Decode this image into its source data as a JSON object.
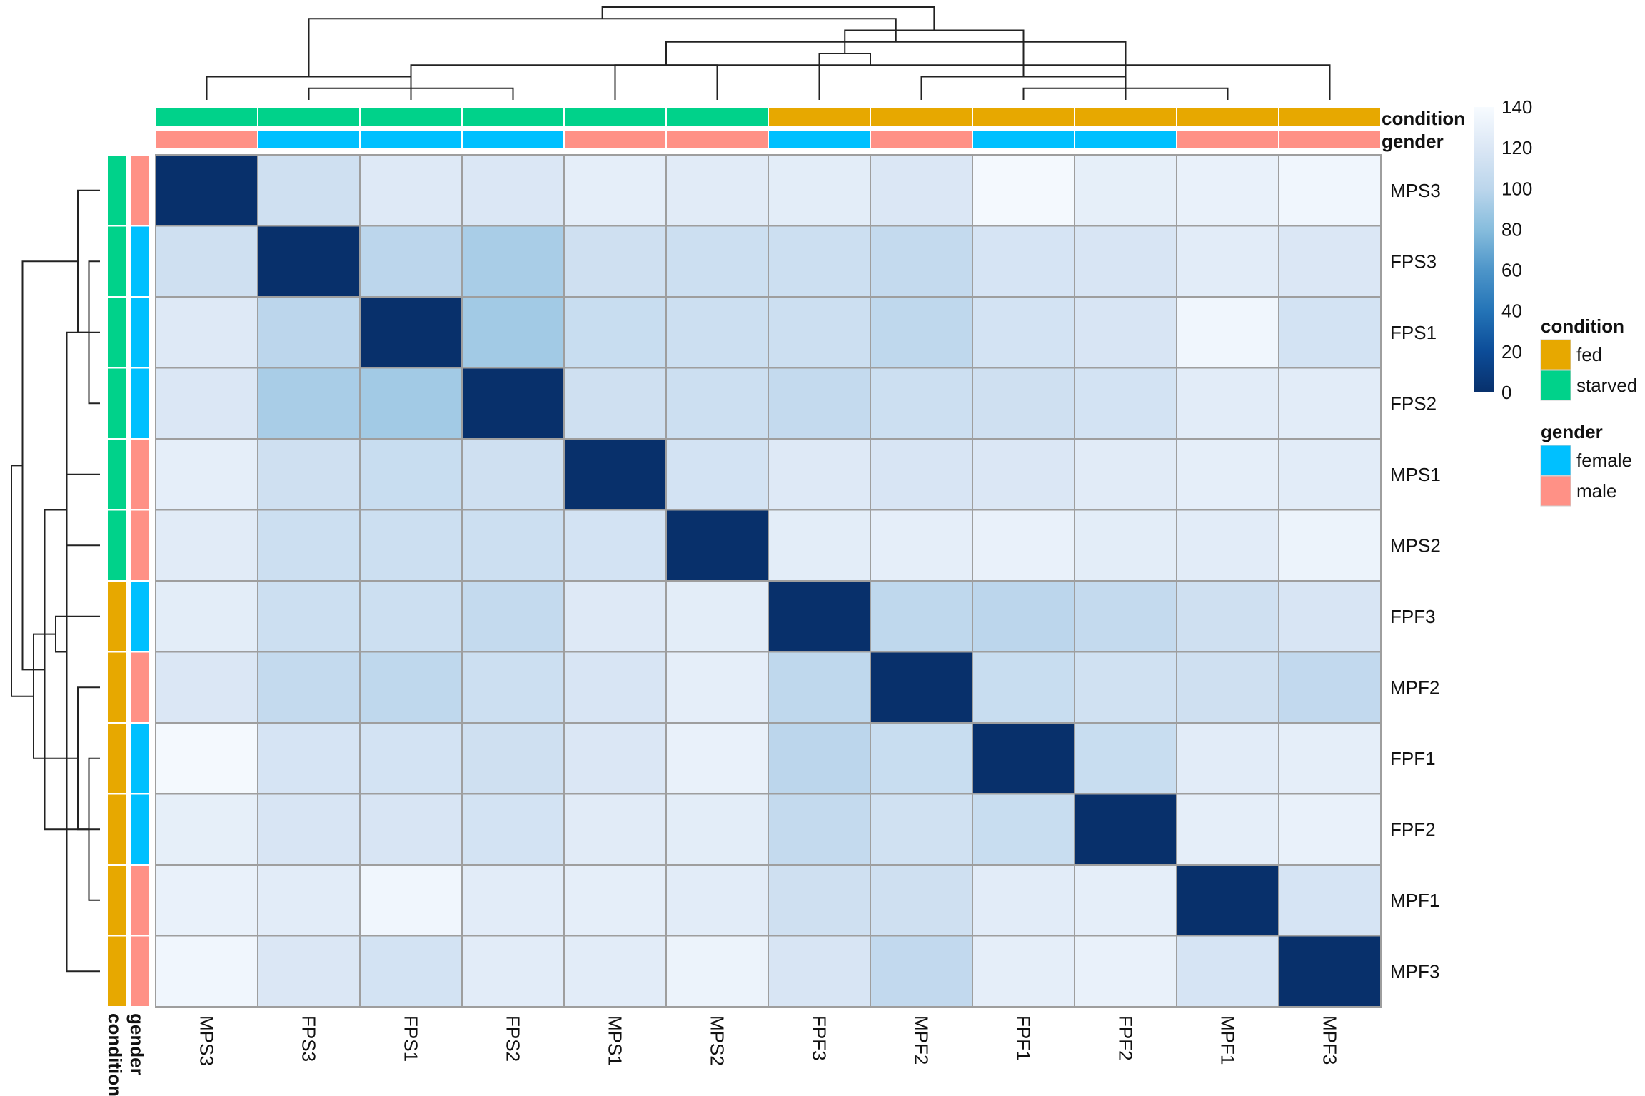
{
  "chart_data": {
    "type": "heatmap",
    "title": "",
    "row_labels": [
      "MPS3",
      "FPS3",
      "FPS1",
      "FPS2",
      "MPS1",
      "MPS2",
      "FPF3",
      "MPF2",
      "FPF1",
      "FPF2",
      "MPF1",
      "MPF3"
    ],
    "col_labels": [
      "MPS3",
      "FPS3",
      "FPS1",
      "FPS2",
      "MPS1",
      "MPS2",
      "FPF3",
      "MPF2",
      "FPF1",
      "FPF2",
      "MPF1",
      "MPF3"
    ],
    "values": [
      [
        0,
        112,
        122,
        120,
        127,
        124,
        126,
        120,
        138,
        128,
        130,
        135
      ],
      [
        112,
        0,
        100,
        93,
        112,
        110,
        110,
        105,
        117,
        118,
        125,
        120
      ],
      [
        122,
        100,
        0,
        90,
        108,
        110,
        110,
        102,
        115,
        118,
        135,
        115
      ],
      [
        120,
        93,
        90,
        0,
        112,
        110,
        105,
        110,
        112,
        115,
        125,
        125
      ],
      [
        127,
        112,
        108,
        112,
        0,
        115,
        122,
        118,
        120,
        124,
        127,
        125
      ],
      [
        124,
        110,
        110,
        110,
        115,
        0,
        126,
        127,
        130,
        126,
        125,
        132
      ],
      [
        126,
        110,
        110,
        105,
        122,
        126,
        0,
        102,
        100,
        105,
        112,
        118
      ],
      [
        120,
        105,
        102,
        110,
        118,
        127,
        102,
        0,
        108,
        113,
        112,
        104
      ],
      [
        138,
        117,
        115,
        112,
        120,
        130,
        100,
        108,
        0,
        108,
        125,
        127
      ],
      [
        128,
        118,
        118,
        115,
        124,
        126,
        105,
        113,
        108,
        0,
        127,
        130
      ],
      [
        130,
        125,
        135,
        125,
        127,
        125,
        112,
        112,
        125,
        127,
        0,
        117
      ],
      [
        135,
        120,
        115,
        125,
        125,
        132,
        118,
        104,
        127,
        130,
        117,
        0
      ]
    ],
    "color_scale": {
      "min": 0,
      "max": 140,
      "ticks": [
        0,
        20,
        40,
        60,
        80,
        100,
        120,
        140
      ],
      "stops": [
        {
          "value": 0,
          "color": "#08306b"
        },
        {
          "value": 20,
          "color": "#0c4c98"
        },
        {
          "value": 40,
          "color": "#2474b7"
        },
        {
          "value": 60,
          "color": "#4d95c9"
        },
        {
          "value": 80,
          "color": "#87bddd"
        },
        {
          "value": 100,
          "color": "#bcd6ec"
        },
        {
          "value": 120,
          "color": "#dbe7f5"
        },
        {
          "value": 140,
          "color": "#f7fbff"
        }
      ]
    },
    "annotations": {
      "condition": {
        "title": "condition",
        "values": [
          "starved",
          "starved",
          "starved",
          "starved",
          "starved",
          "starved",
          "fed",
          "fed",
          "fed",
          "fed",
          "fed",
          "fed"
        ],
        "legend": [
          {
            "label": "fed",
            "color": "#e7a800"
          },
          {
            "label": "starved",
            "color": "#00d28a"
          }
        ]
      },
      "gender": {
        "title": "gender",
        "values": [
          "male",
          "female",
          "female",
          "female",
          "male",
          "male",
          "female",
          "male",
          "female",
          "female",
          "male",
          "male"
        ],
        "legend": [
          {
            "label": "female",
            "color": "#00c0ff"
          },
          {
            "label": "male",
            "color": "#ff9186"
          }
        ]
      }
    },
    "dendrogram": {
      "merges": [
        [
          1,
          3,
          1
        ],
        [
          0,
          2,
          2
        ],
        [
          4,
          5,
          3
        ],
        [
          8,
          10,
          1
        ],
        [
          7,
          9,
          2
        ],
        [
          11,
          12,
          3
        ],
        [
          6,
          17,
          4
        ],
        [
          14,
          15,
          5
        ],
        [
          16,
          18,
          6
        ],
        [
          13,
          19,
          7
        ],
        [
          20,
          21,
          8
        ]
      ],
      "note": ""
    },
    "legend_placement": "right",
    "grid": true
  }
}
